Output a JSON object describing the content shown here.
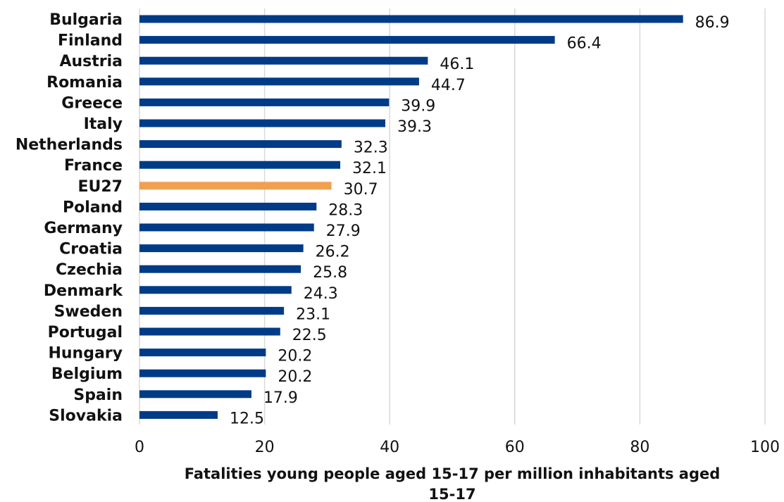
{
  "chart_data": {
    "type": "bar",
    "orientation": "horizontal",
    "categories": [
      "Bulgaria",
      "Finland",
      "Austria",
      "Romania",
      "Greece",
      "Italy",
      "Netherlands",
      "France",
      "EU27",
      "Poland",
      "Germany",
      "Croatia",
      "Czechia",
      "Denmark",
      "Sweden",
      "Portugal",
      "Hungary",
      "Belgium",
      "Spain",
      "Slovakia"
    ],
    "values": [
      86.9,
      66.4,
      46.1,
      44.7,
      39.9,
      39.3,
      32.3,
      32.1,
      30.7,
      28.3,
      27.9,
      26.2,
      25.8,
      24.3,
      23.1,
      22.5,
      20.2,
      20.2,
      17.9,
      12.5
    ],
    "highlight_category": "EU27",
    "colors": {
      "default": "#003b87",
      "highlight": "#f0a050"
    },
    "xlabel_line1": "Fatalities young people aged 15-17 per million inhabitants aged",
    "xlabel_line2": "15-17",
    "xlim": [
      0,
      100
    ],
    "xticks": [
      0,
      20,
      40,
      60,
      80,
      100
    ],
    "grid": "vertical",
    "legend": "none"
  }
}
